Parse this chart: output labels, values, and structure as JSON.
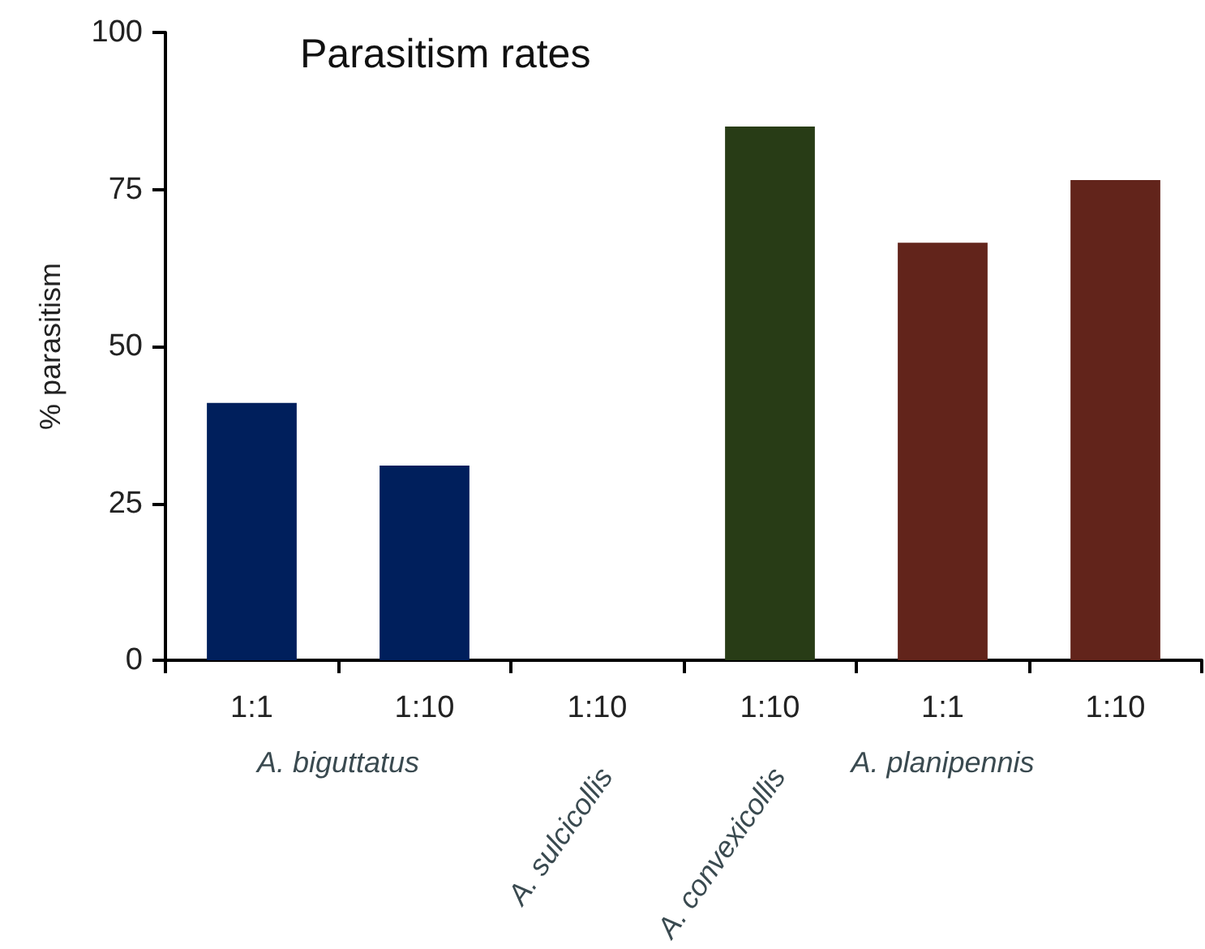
{
  "chart_data": {
    "type": "bar",
    "title": "Parasitism rates",
    "ylabel": "% parasitism",
    "categories": [
      "1:1",
      "1:10",
      "1:10",
      "1:10",
      "1:1",
      "1:10"
    ],
    "values": [
      41,
      31,
      0,
      85,
      66.5,
      76.5
    ],
    "colors": [
      "#001f5c",
      "#001f5c",
      "#001f5c",
      "#283c16",
      "#62241b",
      "#62241b"
    ],
    "ylim": [
      0,
      100
    ],
    "yticks": [
      0,
      25,
      50,
      75,
      100
    ],
    "grid": false,
    "annotations": [
      "A. biguttatus",
      "A. sulcicollis",
      "A. convexicollis",
      "A. planipennis"
    ]
  }
}
